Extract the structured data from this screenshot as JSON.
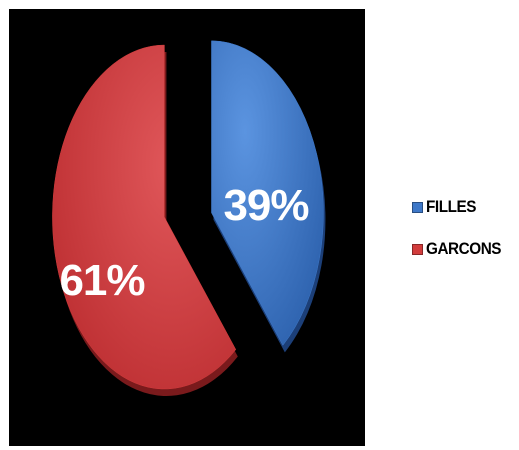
{
  "chart_data": {
    "type": "pie",
    "title": "",
    "categories": [
      "FILLES",
      "GARCONS"
    ],
    "values": [
      39,
      61
    ],
    "data_labels": [
      "39%",
      "61%"
    ],
    "colors": [
      "#3e78c8",
      "#d23c3c"
    ],
    "legend_position": "right",
    "style": "3d-exploded",
    "background": "#000000"
  }
}
